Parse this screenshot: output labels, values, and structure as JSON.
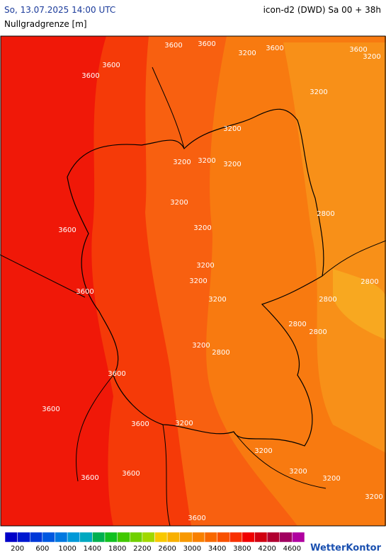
{
  "header": {
    "datetime": "So, 13.07.2025 14:00 UTC",
    "model": "icon-d2 (DWD) Sa 00 + 38h",
    "parameter": "Nullgradgrenze [m]"
  },
  "map": {
    "contour_labels": [
      3600,
      3600,
      3600,
      3600,
      3600,
      3600,
      3200,
      3200,
      3200,
      3200,
      3200,
      3200,
      3200,
      3200,
      3200,
      3600,
      2800,
      3200,
      3200,
      3600,
      3200,
      2800,
      2800,
      2800,
      2800,
      3200,
      2800,
      3600,
      3600,
      3600,
      3200,
      3200,
      3200,
      3200,
      3600,
      3600,
      3200,
      3600
    ]
  },
  "legend": {
    "colors": [
      "#0000c8",
      "#0018d0",
      "#0038d8",
      "#0058e0",
      "#0078e0",
      "#0098d8",
      "#00a8c0",
      "#00b050",
      "#10c020",
      "#40c800",
      "#70d000",
      "#a0d800",
      "#f8c800",
      "#f8b000",
      "#f89800",
      "#f88000",
      "#f86800",
      "#f85000",
      "#f83000",
      "#f00000",
      "#d00010",
      "#b00030",
      "#a00060",
      "#b000a0"
    ],
    "labels": [
      200,
      600,
      1000,
      1400,
      1800,
      2200,
      2600,
      3000,
      3400,
      3800,
      4200,
      4600
    ]
  },
  "brand": "WetterKontor"
}
